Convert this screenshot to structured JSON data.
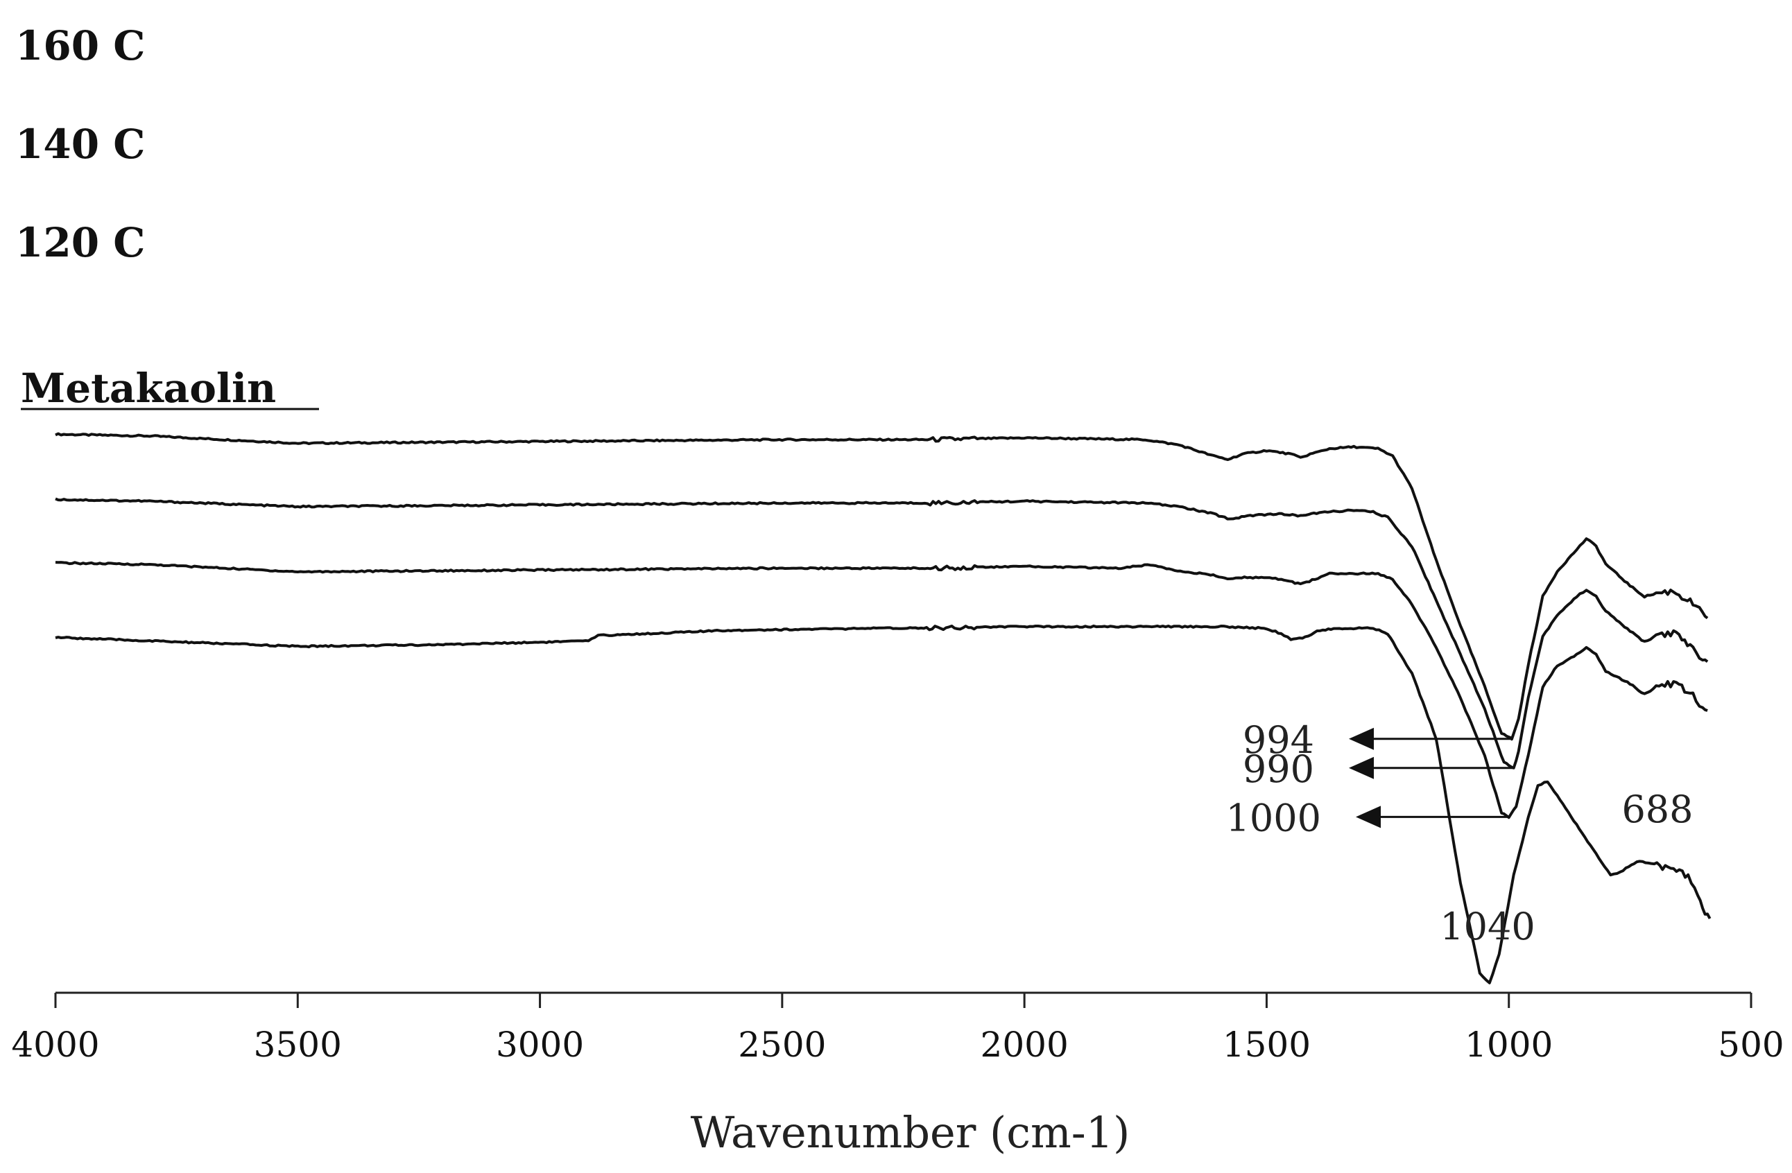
{
  "chart_data": {
    "type": "line",
    "title": "",
    "xlabel": "Wavenumber (cm-1)",
    "ylabel": "",
    "xlim": [
      4000,
      500
    ],
    "x_ticks": [
      4000,
      3500,
      3000,
      2500,
      2000,
      1500,
      1000,
      500
    ],
    "x_tick_labels": [
      "4000",
      "3500",
      "3000",
      "2500",
      "2000",
      "1500",
      "1000",
      "500"
    ],
    "y_units": "relative transmittance (offset stacked, arbitrary)",
    "series": [
      {
        "name": "160 C",
        "label": "160 C",
        "points": [
          [
            4000,
            0.93
          ],
          [
            3800,
            0.925
          ],
          [
            3500,
            0.905
          ],
          [
            3000,
            0.91
          ],
          [
            2500,
            0.915
          ],
          [
            2200,
            0.915
          ],
          [
            2000,
            0.92
          ],
          [
            1750,
            0.915
          ],
          [
            1680,
            0.9
          ],
          [
            1610,
            0.87
          ],
          [
            1580,
            0.86
          ],
          [
            1550,
            0.875
          ],
          [
            1500,
            0.885
          ],
          [
            1450,
            0.875
          ],
          [
            1430,
            0.865
          ],
          [
            1410,
            0.875
          ],
          [
            1370,
            0.89
          ],
          [
            1320,
            0.895
          ],
          [
            1270,
            0.89
          ],
          [
            1240,
            0.87
          ],
          [
            1200,
            0.78
          ],
          [
            1150,
            0.58
          ],
          [
            1100,
            0.4
          ],
          [
            1050,
            0.23
          ],
          [
            1015,
            0.1
          ],
          [
            1000,
            0.09
          ],
          [
            994,
            0.085
          ],
          [
            980,
            0.14
          ],
          [
            960,
            0.29
          ],
          [
            930,
            0.48
          ],
          [
            900,
            0.55
          ],
          [
            860,
            0.61
          ],
          [
            840,
            0.64
          ],
          [
            820,
            0.62
          ],
          [
            800,
            0.57
          ],
          [
            750,
            0.51
          ],
          [
            720,
            0.48
          ],
          [
            690,
            0.49
          ],
          [
            660,
            0.495
          ],
          [
            620,
            0.46
          ],
          [
            600,
            0.43
          ],
          [
            590,
            0.42
          ]
        ]
      },
      {
        "name": "140 C",
        "label": "140 C",
        "points": [
          [
            4000,
            0.73
          ],
          [
            3800,
            0.725
          ],
          [
            3500,
            0.71
          ],
          [
            3000,
            0.715
          ],
          [
            2500,
            0.72
          ],
          [
            2200,
            0.72
          ],
          [
            2000,
            0.725
          ],
          [
            1750,
            0.72
          ],
          [
            1680,
            0.71
          ],
          [
            1610,
            0.69
          ],
          [
            1575,
            0.675
          ],
          [
            1540,
            0.685
          ],
          [
            1480,
            0.69
          ],
          [
            1430,
            0.685
          ],
          [
            1380,
            0.695
          ],
          [
            1320,
            0.7
          ],
          [
            1280,
            0.695
          ],
          [
            1250,
            0.68
          ],
          [
            1200,
            0.6
          ],
          [
            1150,
            0.45
          ],
          [
            1100,
            0.3
          ],
          [
            1050,
            0.15
          ],
          [
            1010,
            0.0
          ],
          [
            995,
            -0.01
          ],
          [
            990,
            -0.015
          ],
          [
            980,
            0.03
          ],
          [
            960,
            0.18
          ],
          [
            930,
            0.35
          ],
          [
            900,
            0.41
          ],
          [
            860,
            0.46
          ],
          [
            840,
            0.48
          ],
          [
            820,
            0.46
          ],
          [
            800,
            0.42
          ],
          [
            750,
            0.365
          ],
          [
            720,
            0.335
          ],
          [
            690,
            0.355
          ],
          [
            660,
            0.36
          ],
          [
            620,
            0.315
          ],
          [
            600,
            0.29
          ],
          [
            590,
            0.28
          ]
        ]
      },
      {
        "name": "120 C",
        "label": "120 C",
        "points": [
          [
            4000,
            0.535
          ],
          [
            3800,
            0.53
          ],
          [
            3500,
            0.51
          ],
          [
            3000,
            0.515
          ],
          [
            2500,
            0.52
          ],
          [
            2200,
            0.52
          ],
          [
            2000,
            0.525
          ],
          [
            1800,
            0.52
          ],
          [
            1740,
            0.53
          ],
          [
            1690,
            0.515
          ],
          [
            1610,
            0.5
          ],
          [
            1575,
            0.49
          ],
          [
            1540,
            0.495
          ],
          [
            1470,
            0.49
          ],
          [
            1430,
            0.475
          ],
          [
            1400,
            0.49
          ],
          [
            1370,
            0.505
          ],
          [
            1300,
            0.505
          ],
          [
            1270,
            0.505
          ],
          [
            1240,
            0.49
          ],
          [
            1200,
            0.42
          ],
          [
            1150,
            0.3
          ],
          [
            1100,
            0.16
          ],
          [
            1050,
            0.0
          ],
          [
            1015,
            -0.16
          ],
          [
            1000,
            -0.17
          ],
          [
            985,
            -0.14
          ],
          [
            960,
            0.0
          ],
          [
            930,
            0.19
          ],
          [
            900,
            0.25
          ],
          [
            860,
            0.28
          ],
          [
            840,
            0.3
          ],
          [
            820,
            0.28
          ],
          [
            800,
            0.235
          ],
          [
            750,
            0.2
          ],
          [
            720,
            0.17
          ],
          [
            690,
            0.195
          ],
          [
            660,
            0.2
          ],
          [
            620,
            0.17
          ],
          [
            600,
            0.13
          ],
          [
            590,
            0.125
          ]
        ]
      },
      {
        "name": "Metakaolin",
        "label": "Metakaolin",
        "points": [
          [
            4000,
            0.28
          ],
          [
            3800,
            0.27
          ],
          [
            3500,
            0.255
          ],
          [
            3200,
            0.26
          ],
          [
            2900,
            0.27
          ],
          [
            2880,
            0.285
          ],
          [
            2600,
            0.3
          ],
          [
            2300,
            0.305
          ],
          [
            2000,
            0.31
          ],
          [
            1800,
            0.31
          ],
          [
            1600,
            0.31
          ],
          [
            1500,
            0.305
          ],
          [
            1470,
            0.29
          ],
          [
            1450,
            0.275
          ],
          [
            1420,
            0.28
          ],
          [
            1390,
            0.3
          ],
          [
            1350,
            0.305
          ],
          [
            1280,
            0.305
          ],
          [
            1250,
            0.29
          ],
          [
            1200,
            0.18
          ],
          [
            1150,
            0.0
          ],
          [
            1100,
            -0.4
          ],
          [
            1060,
            -0.65
          ],
          [
            1040,
            -0.68
          ],
          [
            1020,
            -0.6
          ],
          [
            990,
            -0.38
          ],
          [
            960,
            -0.22
          ],
          [
            940,
            -0.13
          ],
          [
            920,
            -0.12
          ],
          [
            900,
            -0.16
          ],
          [
            860,
            -0.24
          ],
          [
            820,
            -0.32
          ],
          [
            790,
            -0.38
          ],
          [
            770,
            -0.37
          ],
          [
            730,
            -0.34
          ],
          [
            700,
            -0.35
          ],
          [
            660,
            -0.365
          ],
          [
            630,
            -0.38
          ],
          [
            610,
            -0.43
          ],
          [
            595,
            -0.48
          ],
          [
            585,
            -0.5
          ]
        ]
      }
    ],
    "annotations": [
      {
        "text": "994",
        "series": "160 C",
        "x": 994,
        "arrow": true
      },
      {
        "text": "990",
        "series": "140 C",
        "x": 990,
        "arrow": true
      },
      {
        "text": "1000",
        "series": "120 C",
        "x": 1000,
        "arrow": true
      },
      {
        "text": "1040",
        "series": "Metakaolin",
        "x": 1040,
        "arrow": false
      },
      {
        "text": "688",
        "series": "Metakaolin",
        "x": 688,
        "arrow": false
      }
    ]
  }
}
